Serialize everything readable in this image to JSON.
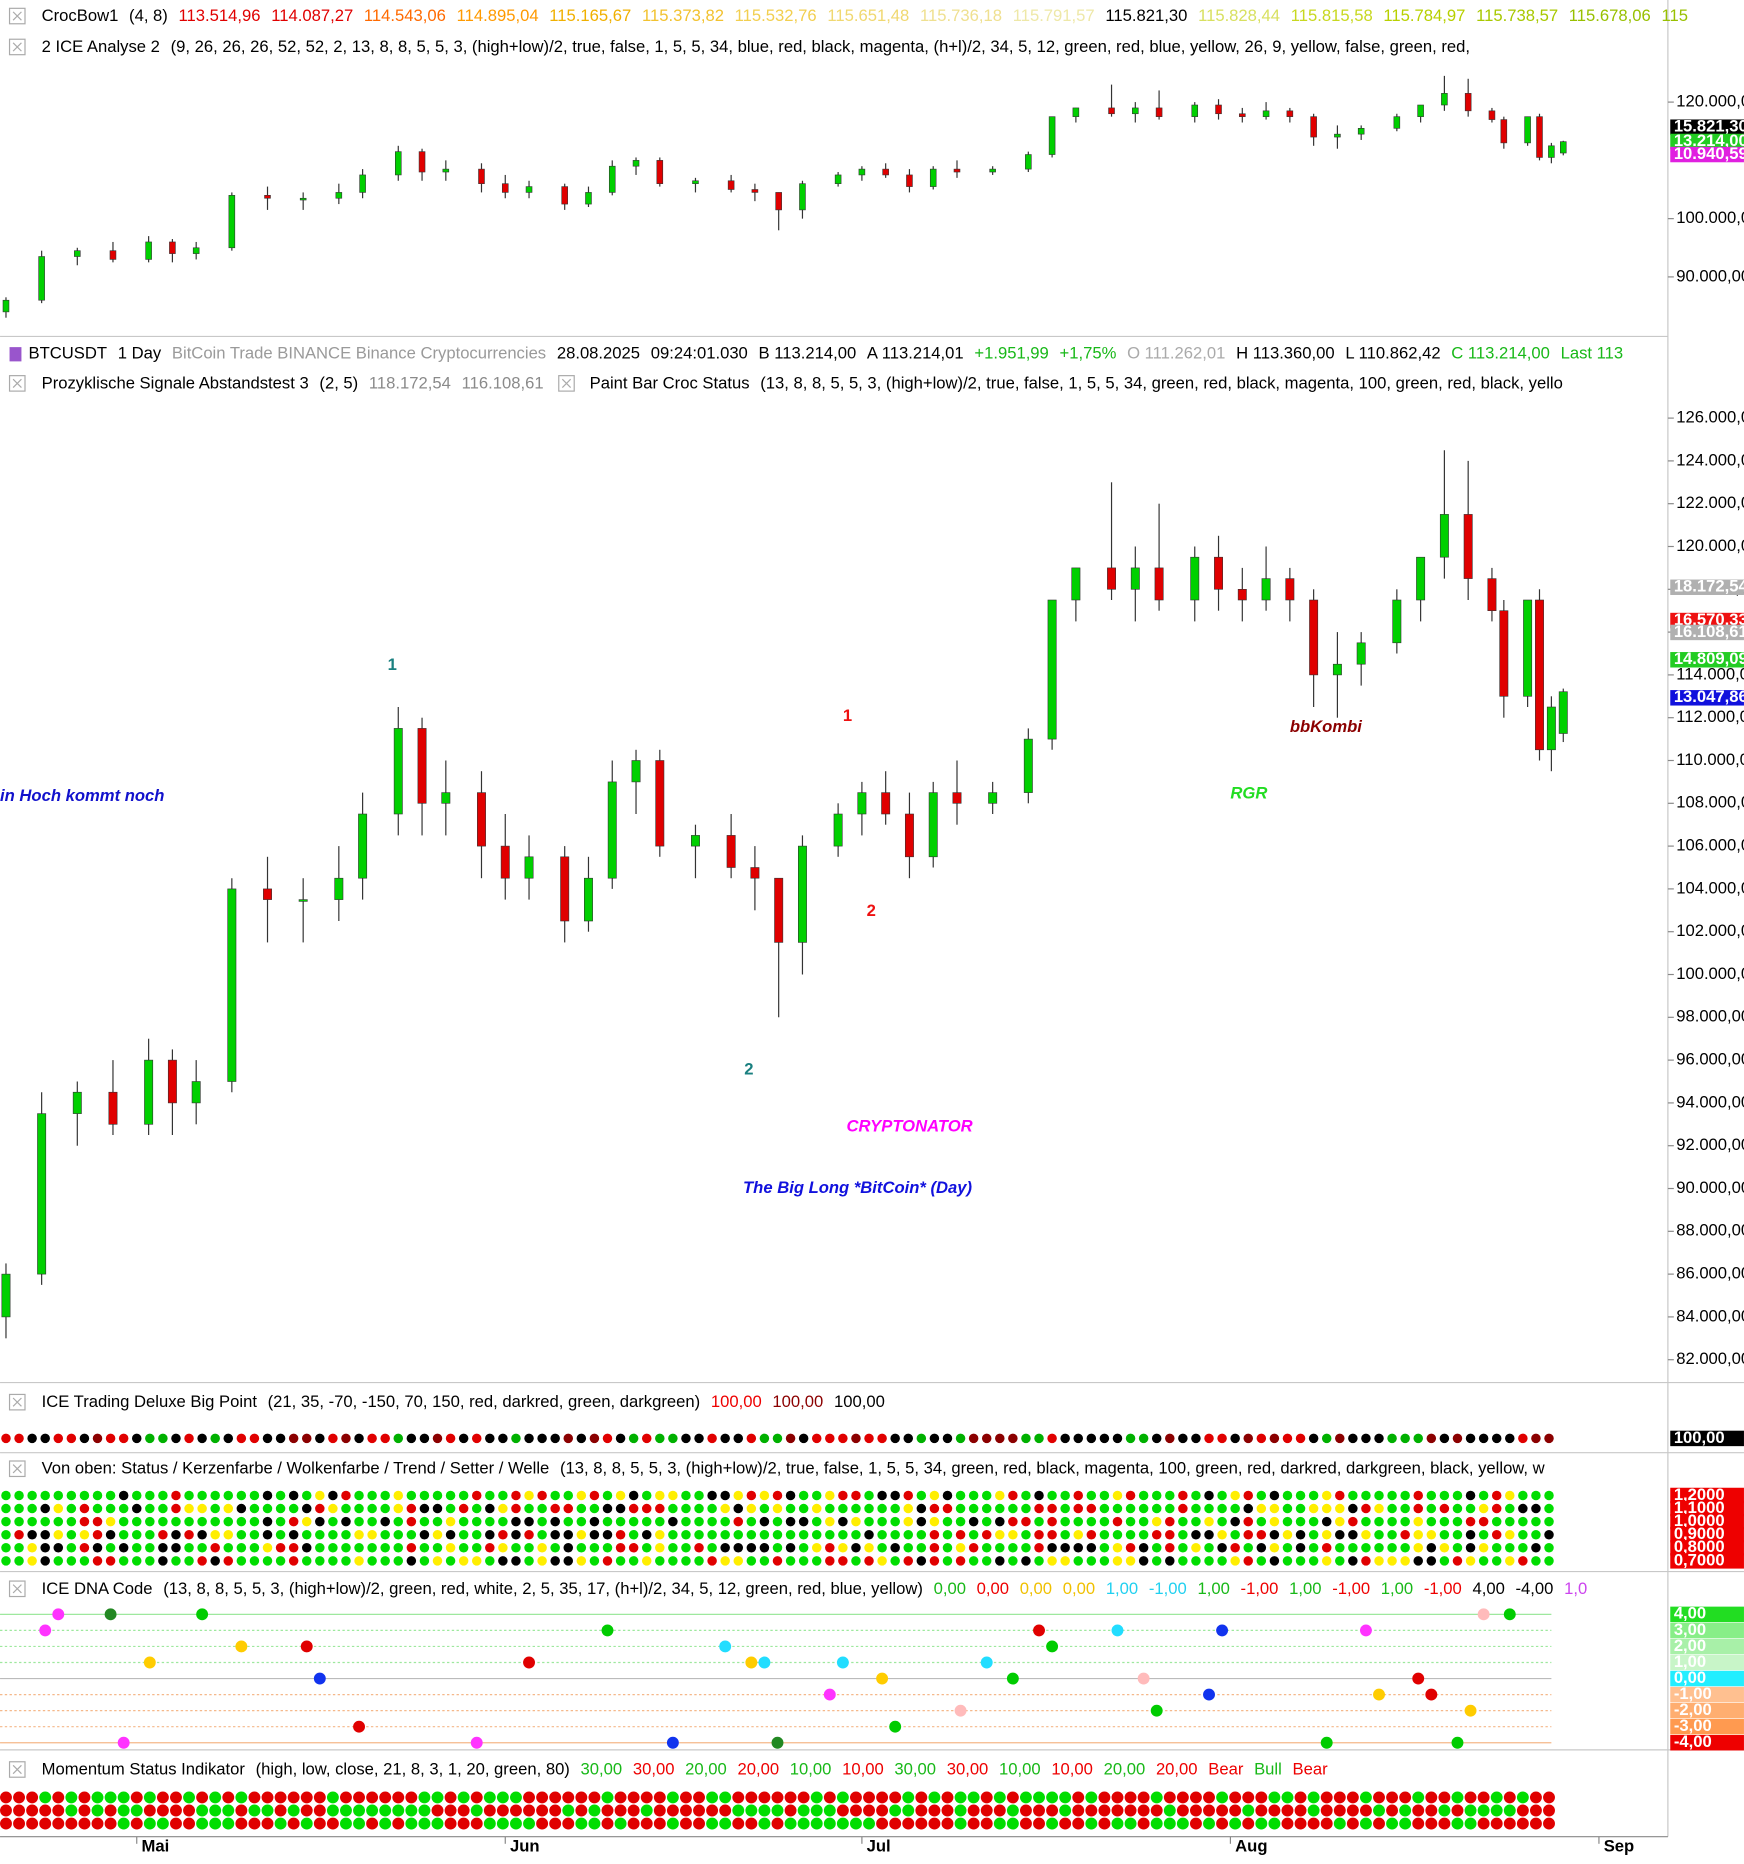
{
  "top_panel": {
    "legend_rows": [
      [
        {
          "text": "CrocBow1",
          "color": "#000000"
        },
        {
          "text": "(4,  8)",
          "color": "#000000"
        },
        {
          "text": "113.514,96",
          "color": "#e00000"
        },
        {
          "text": "114.087,27",
          "color": "#e00000"
        },
        {
          "text": "114.543,06",
          "color": "#ff6a00"
        },
        {
          "text": "114.895,04",
          "color": "#ff9a00"
        },
        {
          "text": "115.165,67",
          "color": "#f0b000"
        },
        {
          "text": "115.373,82",
          "color": "#f2c230"
        },
        {
          "text": "115.532,76",
          "color": "#f2cf50"
        },
        {
          "text": "115.651,48",
          "color": "#f0d870"
        },
        {
          "text": "115.736,18",
          "color": "#efe090"
        },
        {
          "text": "115.791,57",
          "color": "#eee8a8"
        },
        {
          "text": "115.821,30",
          "color": "#000000"
        },
        {
          "text": "115.828,44",
          "color": "#d8e060"
        },
        {
          "text": "115.815,58",
          "color": "#c8d820"
        },
        {
          "text": "115.784,97",
          "color": "#b8d000"
        },
        {
          "text": "115.738,57",
          "color": "#a8c800"
        },
        {
          "text": "115.678,06",
          "color": "#98c000"
        },
        {
          "text": "115",
          "color": "#98c000"
        }
      ],
      [
        {
          "text": "2 ICE Analyse 2",
          "color": "#000000"
        },
        {
          "text": "(9,  26,  26,  26,  52,  52,  2,  13,  8,  8,  5,  5,  3,  (high+low)/2,  true,  false,  1,  5,  5,  34,  blue,  red,  black,  magenta,  (h+l)/2,  34,  5,  12,  green,  red,  blue,  yellow,  26,  9,  yellow,  false,  green,  red,",
          "color": "#000000"
        }
      ]
    ],
    "ylim": [
      80400,
      126300
    ],
    "yticks": [
      {
        "value": 90000,
        "label": "90.000,00"
      },
      {
        "value": 100000,
        "label": "100.000,00"
      },
      {
        "value": 120000,
        "label": "120.000,00"
      }
    ],
    "price_boxes": [
      {
        "text": "15.821,30",
        "color": "#000000"
      },
      {
        "text": "13.214,00",
        "color": "#22cc22"
      },
      {
        "text": "10.940,59",
        "color": "#e020e0"
      }
    ]
  },
  "toolbar": [
    {
      "text": "BTCUSDT",
      "color": "#000000"
    },
    {
      "text": "1 Day",
      "color": "#000000"
    },
    {
      "text": "BitCoin  Trade  BINANCE  Binance  Cryptocurrencies",
      "color": "#9a9a9a"
    },
    {
      "text": "28.08.2025",
      "color": "#000000"
    },
    {
      "text": "09:24:01.030",
      "color": "#000000"
    },
    {
      "text": "B 113.214,00",
      "color": "#000000"
    },
    {
      "text": "A 113.214,01",
      "color": "#000000"
    },
    {
      "text": "+1.951,99",
      "color": "#18b818"
    },
    {
      "text": "+1,75%",
      "color": "#18b818"
    },
    {
      "text": "O 111.262,01",
      "color": "#aaaaaa"
    },
    {
      "text": "H 113.360,00",
      "color": "#000000"
    },
    {
      "text": "L 110.862,42",
      "color": "#000000"
    },
    {
      "text": "C 113.214,00",
      "color": "#18b818"
    },
    {
      "text": "Last 113",
      "color": "#18b818"
    }
  ],
  "chart_data": {
    "type": "candlestick",
    "legend_rows": [
      [
        {
          "text": "Prozyklische Signale Abstandstest 3",
          "color": "#000000"
        },
        {
          "text": "(2,  5)",
          "color": "#000000"
        },
        {
          "text": "118.172,54",
          "color": "#8a8a8a"
        },
        {
          "text": "116.108,61",
          "color": "#8a8a8a"
        }
      ],
      [
        {
          "text": "Paint Bar Croc Status",
          "color": "#000000"
        },
        {
          "text": "(13,  8,  8,  5,  5,  3,  (high+low)/2,  true,  false,  1,  5,  5,  34,  green,  red,  black,  magenta,  100,  green,  red,  black,  yello",
          "color": "#000000"
        }
      ]
    ],
    "title": "CRYPTONATOR",
    "subtitle": "The Big Long *BitCoin* (Day)",
    "annotations": [
      {
        "text": "1",
        "color": "#1a8080"
      },
      {
        "text": "1",
        "color": "#ee1111"
      },
      {
        "text": "2",
        "color": "#ee1111"
      },
      {
        "text": "2",
        "color": "#1a8080"
      },
      {
        "text": "in Hoch kommt noch",
        "color": "#1111cc"
      },
      {
        "text": "bbKombi",
        "color": "#8b0000"
      },
      {
        "text": "RGR",
        "color": "#22dd22"
      }
    ],
    "x": [
      0,
      3,
      6,
      9,
      12,
      14,
      16,
      19,
      22,
      25,
      28,
      30,
      33,
      35,
      37,
      40,
      42,
      44,
      47,
      49,
      51,
      53,
      55,
      58,
      61,
      63,
      65,
      67,
      70,
      72,
      74,
      76,
      78,
      80,
      83,
      86,
      88,
      90,
      93,
      95,
      97,
      100,
      102,
      104,
      106,
      108,
      110,
      112,
      114,
      117,
      119,
      121,
      123,
      125,
      126,
      128,
      129,
      130,
      131
    ],
    "open": [
      84000,
      86000,
      93500,
      94500,
      93000,
      96000,
      94000,
      95000,
      104000,
      103500,
      103500,
      104500,
      107500,
      111500,
      108000,
      108500,
      106000,
      104500,
      105500,
      102500,
      104500,
      109000,
      110000,
      106000,
      106500,
      105000,
      104500,
      101500,
      106000,
      107500,
      108500,
      107500,
      105500,
      108500,
      108000,
      108500,
      111000,
      117500,
      119000,
      118000,
      119000,
      117500,
      119500,
      118000,
      117500,
      118500,
      117500,
      114000,
      114500,
      115500,
      117500,
      119500,
      121500,
      118500,
      117000,
      113000,
      117500,
      110500,
      111262.01
    ],
    "high": [
      86500,
      94500,
      95000,
      96000,
      97000,
      96500,
      96000,
      104500,
      105500,
      104500,
      106000,
      108500,
      112500,
      112000,
      110000,
      109500,
      107500,
      106500,
      106000,
      105500,
      110000,
      110500,
      110500,
      107000,
      107500,
      106000,
      104500,
      106500,
      108000,
      109000,
      109500,
      108500,
      109000,
      110000,
      109000,
      111500,
      117500,
      119000,
      123000,
      120000,
      122000,
      120000,
      120500,
      119000,
      120000,
      119000,
      118000,
      116000,
      116000,
      118000,
      119500,
      124500,
      124000,
      119000,
      117500,
      117500,
      118000,
      113000,
      113360
    ],
    "low": [
      83000,
      85500,
      92000,
      92500,
      92500,
      92500,
      93000,
      94500,
      101500,
      101500,
      102500,
      103500,
      106500,
      106500,
      106500,
      104500,
      103500,
      103500,
      101500,
      102000,
      104000,
      107500,
      105500,
      104500,
      104500,
      103000,
      98000,
      100000,
      105500,
      106500,
      107000,
      104500,
      105000,
      107000,
      107500,
      108000,
      110500,
      116500,
      117500,
      116500,
      117000,
      116500,
      117000,
      116500,
      117000,
      116500,
      112500,
      112000,
      113500,
      115000,
      116500,
      118500,
      117500,
      116500,
      112000,
      112500,
      110000,
      109500,
      110862.42
    ],
    "close": [
      86000,
      93500,
      94500,
      93000,
      96000,
      94000,
      95000,
      104000,
      103500,
      103500,
      104500,
      107500,
      111500,
      108000,
      108500,
      106000,
      104500,
      105500,
      102500,
      104500,
      109000,
      110000,
      106000,
      106500,
      105000,
      104500,
      101500,
      106000,
      107500,
      108500,
      107500,
      105500,
      108500,
      108000,
      108500,
      111000,
      117500,
      119000,
      118000,
      119000,
      117500,
      119500,
      118000,
      117500,
      118500,
      117500,
      114000,
      114500,
      115500,
      117500,
      119500,
      121500,
      118500,
      117000,
      113000,
      117500,
      110500,
      112500,
      113214
    ],
    "up_color": "#00d000",
    "down_color": "#e00000",
    "xlim": [
      -0.5,
      139.8
    ],
    "xticks": [
      {
        "value": 11,
        "label": "Mai"
      },
      {
        "value": 42,
        "label": "Jun"
      },
      {
        "value": 72,
        "label": "Jul"
      },
      {
        "value": 103,
        "label": "Aug"
      },
      {
        "value": 134,
        "label": "Sep"
      }
    ],
    "ylim": [
      81100,
      126650
    ],
    "yticks": [
      {
        "value": 82000,
        "label": "82.000,00"
      },
      {
        "value": 84000,
        "label": "84.000,00"
      },
      {
        "value": 86000,
        "label": "86.000,00"
      },
      {
        "value": 88000,
        "label": "88.000,00"
      },
      {
        "value": 90000,
        "label": "90.000,00"
      },
      {
        "value": 92000,
        "label": "92.000,00"
      },
      {
        "value": 94000,
        "label": "94.000,00"
      },
      {
        "value": 96000,
        "label": "96.000,00"
      },
      {
        "value": 98000,
        "label": "98.000,00"
      },
      {
        "value": 100000,
        "label": "100.000,00"
      },
      {
        "value": 102000,
        "label": "102.000,00"
      },
      {
        "value": 104000,
        "label": "104.000,00"
      },
      {
        "value": 106000,
        "label": "106.000,00"
      },
      {
        "value": 108000,
        "label": "108.000,00"
      },
      {
        "value": 110000,
        "label": "110.000,00"
      },
      {
        "value": 112000,
        "label": "112.000,00"
      },
      {
        "value": 114000,
        "label": "114.000,00"
      },
      {
        "value": 116000,
        "label": "116.000,00"
      },
      {
        "value": 118000,
        "label": "118.000,00"
      },
      {
        "value": 120000,
        "label": "120.000,00"
      },
      {
        "value": 122000,
        "label": "122.000,00"
      },
      {
        "value": 124000,
        "label": "124.000,00"
      },
      {
        "value": 126000,
        "label": "126.000,00"
      }
    ],
    "price_boxes": [
      {
        "text": "18.172,54",
        "color": "#b0b0b0"
      },
      {
        "text": "16.570,33",
        "color": "#ee1111"
      },
      {
        "text": "16.108,61",
        "color": "#b0b0b0"
      },
      {
        "text": "14.809,09",
        "color": "#22cc22"
      },
      {
        "text": "13.047,86",
        "color": "#1111dd"
      }
    ]
  },
  "indicator_panels": [
    {
      "legend": [
        {
          "text": "ICE Trading Deluxe Big Point",
          "color": "#000000"
        },
        {
          "text": "(21,  35,  -70,  -150,  70,  150,  red,  darkred,  green,  darkgreen)",
          "color": "#000000"
        },
        {
          "text": "100,00",
          "color": "#ee0000"
        },
        {
          "text": "100,00",
          "color": "#8b0000"
        },
        {
          "text": "100,00",
          "color": "#000000"
        }
      ],
      "scale": [
        {
          "text": "100,00",
          "color": "#000000"
        }
      ]
    },
    {
      "legend": [
        {
          "text": "Von oben: Status / Kerzenfarbe / Wolkenfarbe / Trend / Setter / Welle",
          "color": "#000000"
        },
        {
          "text": "(13,  8,  8,  5,  5,  3,  (high+low)/2,  true,  false,  1,  5,  5,  34,  green,  red,  black,  magenta,  100,  green,  red,  darkred,  darkgreen,  black,  yellow,  w",
          "color": "#000000"
        }
      ],
      "scale": [
        {
          "text": "1,2000",
          "color": "#ee0000"
        },
        {
          "text": "1,1000",
          "color": "#ee0000"
        },
        {
          "text": "1,0000",
          "color": "#ee0000"
        },
        {
          "text": "0,9000",
          "color": "#ee0000"
        },
        {
          "text": "0,8000",
          "color": "#ee0000"
        },
        {
          "text": "0,7000",
          "color": "#ee0000"
        }
      ]
    },
    {
      "legend": [
        {
          "text": "ICE DNA Code",
          "color": "#000000"
        },
        {
          "text": "(13,  8,  8,  5,  5,  3,  (high+low)/2,  green,  red,  white,  2,  5,  35,  17,  (h+l)/2,  34,  5,  12,  green,  red,  blue,  yellow)",
          "color": "#000000"
        },
        {
          "text": "0,00",
          "color": "#18b818"
        },
        {
          "text": "0,00",
          "color": "#ee0000"
        },
        {
          "text": "0,00",
          "color": "#f0c000"
        },
        {
          "text": "0,00",
          "color": "#f0c000"
        },
        {
          "text": "1,00",
          "color": "#20d0f0"
        },
        {
          "text": "-1,00",
          "color": "#20d0f0"
        },
        {
          "text": "1,00",
          "color": "#18b818"
        },
        {
          "text": "-1,00",
          "color": "#ee0000"
        },
        {
          "text": "1,00",
          "color": "#18b818"
        },
        {
          "text": "-1,00",
          "color": "#ee0000"
        },
        {
          "text": "1,00",
          "color": "#18b818"
        },
        {
          "text": "-1,00",
          "color": "#ee0000"
        },
        {
          "text": "4,00",
          "color": "#000000"
        },
        {
          "text": "-4,00",
          "color": "#000000"
        },
        {
          "text": "1,0",
          "color": "#cc44ee"
        }
      ],
      "scale": [
        {
          "text": "4,00",
          "color": "#22dd22"
        },
        {
          "text": "3,00",
          "color": "#88ee88"
        },
        {
          "text": "2,00",
          "color": "#a8f0a8"
        },
        {
          "text": "1,00",
          "color": "#c8f5c8"
        },
        {
          "text": "0,00",
          "color": "#22eeff"
        },
        {
          "text": "-1,00",
          "color": "#ffc090"
        },
        {
          "text": "-2,00",
          "color": "#ffae70"
        },
        {
          "text": "-3,00",
          "color": "#ff9a50"
        },
        {
          "text": "-4,00",
          "color": "#ee0000"
        }
      ]
    },
    {
      "legend": [
        {
          "text": "Momentum Status Indikator",
          "color": "#000000"
        },
        {
          "text": "(high,  low,  close,  21,  8,  3,  1,  20,  green,  80)",
          "color": "#000000"
        },
        {
          "text": "30,00",
          "color": "#18b818"
        },
        {
          "text": "30,00",
          "color": "#ee0000"
        },
        {
          "text": "20,00",
          "color": "#18b818"
        },
        {
          "text": "20,00",
          "color": "#ee0000"
        },
        {
          "text": "10,00",
          "color": "#18b818"
        },
        {
          "text": "10,00",
          "color": "#ee0000"
        },
        {
          "text": "30,00",
          "color": "#18b818"
        },
        {
          "text": "30,00",
          "color": "#ee0000"
        },
        {
          "text": "10,00",
          "color": "#18b818"
        },
        {
          "text": "10,00",
          "color": "#ee0000"
        },
        {
          "text": "20,00",
          "color": "#18b818"
        },
        {
          "text": "20,00",
          "color": "#ee0000"
        },
        {
          "text": "Bear",
          "color": "#ee0000"
        },
        {
          "text": "Bull",
          "color": "#18b818"
        },
        {
          "text": "Bear",
          "color": "#ee0000"
        }
      ],
      "scale": []
    }
  ]
}
